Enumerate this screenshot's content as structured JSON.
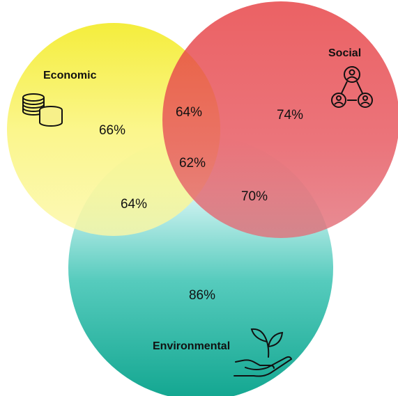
{
  "sets": {
    "economic": {
      "label": "Economic",
      "value": "66%",
      "icon": "coins-icon",
      "color": "#f2ec1c"
    },
    "social": {
      "label": "Social",
      "value": "74%",
      "icon": "people-network-icon",
      "color": "#e8343c"
    },
    "environmental": {
      "label": "Environmental",
      "value": "86%",
      "icon": "plant-in-hand-icon",
      "color": "#14b09a"
    }
  },
  "intersections": {
    "economic_social": "64%",
    "economic_environmental": "64%",
    "social_environmental": "70%",
    "all_three": "62%"
  }
}
